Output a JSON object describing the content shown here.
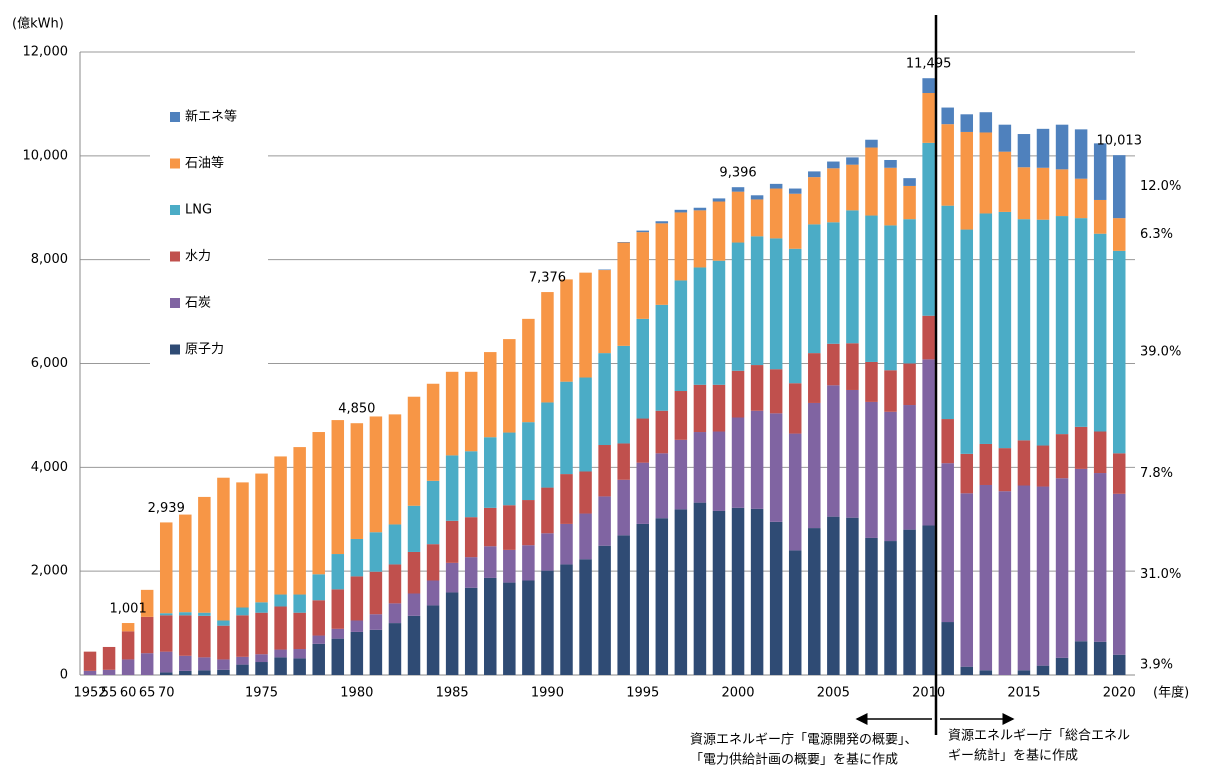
{
  "chart_data": {
    "type": "stacked-bar",
    "y_unit": "(億kWh)",
    "x_unit": "(年度)",
    "categories": [
      "1952",
      "55",
      "60",
      "65",
      "70",
      null,
      null,
      null,
      null,
      "1975",
      null,
      null,
      null,
      null,
      "1980",
      null,
      null,
      null,
      null,
      "1985",
      null,
      null,
      null,
      null,
      "1990",
      null,
      null,
      null,
      null,
      "1995",
      null,
      null,
      null,
      null,
      "2000",
      null,
      null,
      null,
      null,
      "2005",
      null,
      null,
      null,
      null,
      "2010",
      null,
      null,
      null,
      null,
      "2015",
      null,
      null,
      null,
      null,
      "2020"
    ],
    "series": [
      {
        "name": "原子力",
        "color": "#2f4b74",
        "share_label": "3.9%",
        "values": [
          0,
          0,
          0,
          0,
          50,
          80,
          90,
          100,
          200,
          250,
          340,
          320,
          600,
          700,
          830,
          870,
          1000,
          1140,
          1340,
          1590,
          1680,
          1870,
          1780,
          1820,
          2010,
          2130,
          2230,
          2490,
          2690,
          2910,
          3020,
          3190,
          3320,
          3160,
          3220,
          3200,
          2950,
          2400,
          2830,
          3050,
          3030,
          2640,
          2580,
          2800,
          2880,
          1020,
          160,
          90,
          0,
          90,
          180,
          330,
          650,
          640,
          390
        ]
      },
      {
        "name": "石炭",
        "color": "#8064a2",
        "share_label": "31.0%",
        "values": [
          80,
          100,
          300,
          420,
          400,
          290,
          250,
          200,
          150,
          150,
          150,
          180,
          160,
          190,
          220,
          300,
          380,
          430,
          480,
          570,
          590,
          610,
          630,
          680,
          720,
          780,
          880,
          950,
          1070,
          1180,
          1250,
          1340,
          1360,
          1530,
          1740,
          1890,
          2090,
          2250,
          2410,
          2530,
          2460,
          2620,
          2490,
          2400,
          3200,
          3060,
          3340,
          3570,
          3540,
          3560,
          3450,
          3460,
          3320,
          3250,
          3100
        ]
      },
      {
        "name": "水力",
        "color": "#c0504d",
        "share_label": "7.8%",
        "values": [
          370,
          440,
          541,
          700,
          700,
          780,
          800,
          650,
          800,
          800,
          830,
          700,
          680,
          760,
          850,
          820,
          750,
          800,
          700,
          810,
          770,
          740,
          860,
          870,
          880,
          960,
          810,
          990,
          700,
          850,
          820,
          940,
          910,
          900,
          900,
          880,
          850,
          970,
          960,
          800,
          900,
          770,
          800,
          800,
          840,
          850,
          760,
          790,
          830,
          870,
          790,
          850,
          810,
          800,
          780
        ]
      },
      {
        "name": "LNG",
        "color": "#4bacc6",
        "share_label": "39.0%",
        "values": [
          0,
          0,
          0,
          0,
          40,
          60,
          60,
          100,
          150,
          200,
          230,
          350,
          500,
          680,
          720,
          760,
          770,
          890,
          1220,
          1260,
          1270,
          1360,
          1400,
          1500,
          1640,
          1780,
          1810,
          1770,
          1880,
          1920,
          2040,
          2130,
          2260,
          2390,
          2470,
          2480,
          2520,
          2590,
          2480,
          2340,
          2560,
          2820,
          2790,
          2780,
          3330,
          4110,
          4320,
          4440,
          4550,
          4260,
          4350,
          4200,
          4020,
          3810,
          3900
        ]
      },
      {
        "name": "石油等",
        "color": "#f79646",
        "share_label": "6.3%",
        "values": [
          0,
          0,
          160,
          520,
          1749,
          1880,
          2230,
          2750,
          2410,
          2480,
          2660,
          2840,
          2740,
          2580,
          2230,
          2230,
          2120,
          2100,
          1870,
          1610,
          1530,
          1640,
          1800,
          1990,
          2126,
          1970,
          2020,
          1600,
          1990,
          1670,
          1570,
          1310,
          1100,
          1140,
          980,
          710,
          960,
          1060,
          910,
          1040,
          880,
          1310,
          1110,
          640,
          960,
          1570,
          1880,
          1560,
          1160,
          1000,
          1000,
          900,
          760,
          650,
          630
        ]
      },
      {
        "name": "新エネ等",
        "color": "#4f81bd",
        "share_label": "12.0%",
        "values": [
          0,
          0,
          0,
          0,
          0,
          0,
          0,
          0,
          0,
          0,
          0,
          0,
          0,
          0,
          0,
          0,
          0,
          0,
          0,
          0,
          0,
          0,
          0,
          0,
          0,
          0,
          0,
          10,
          10,
          30,
          40,
          50,
          50,
          60,
          86,
          80,
          90,
          100,
          110,
          130,
          140,
          150,
          150,
          150,
          285,
          320,
          340,
          390,
          520,
          640,
          750,
          860,
          950,
          1090,
          1213
        ]
      }
    ],
    "total_labels": [
      {
        "index": 2,
        "label": "1,001"
      },
      {
        "index": 4,
        "label": "2,939"
      },
      {
        "index": 14,
        "label": "4,850"
      },
      {
        "index": 24,
        "label": "7,376"
      },
      {
        "index": 34,
        "label": "9,396"
      },
      {
        "index": 44,
        "label": "11,495"
      },
      {
        "index": 54,
        "label": "10,013"
      }
    ],
    "ylim": [
      0,
      12000
    ],
    "yticks": [
      0,
      {
        "value": 2000,
        "label": "2,000"
      },
      {
        "value": 4000,
        "label": "4,000"
      },
      {
        "value": 6000,
        "label": "6,000"
      },
      {
        "value": 8000,
        "label": "8,000"
      },
      {
        "value": 10000,
        "label": "10,000"
      },
      {
        "value": 12000,
        "label": "12,000"
      }
    ],
    "grid": true,
    "sources": [
      [
        "資源エネルギー庁「電源開発の概要」、",
        "「電力供給計画の概要」を基に作成"
      ],
      [
        "資源エネルギー庁「総合エネル",
        "ギー統計」を基に作成"
      ]
    ]
  }
}
